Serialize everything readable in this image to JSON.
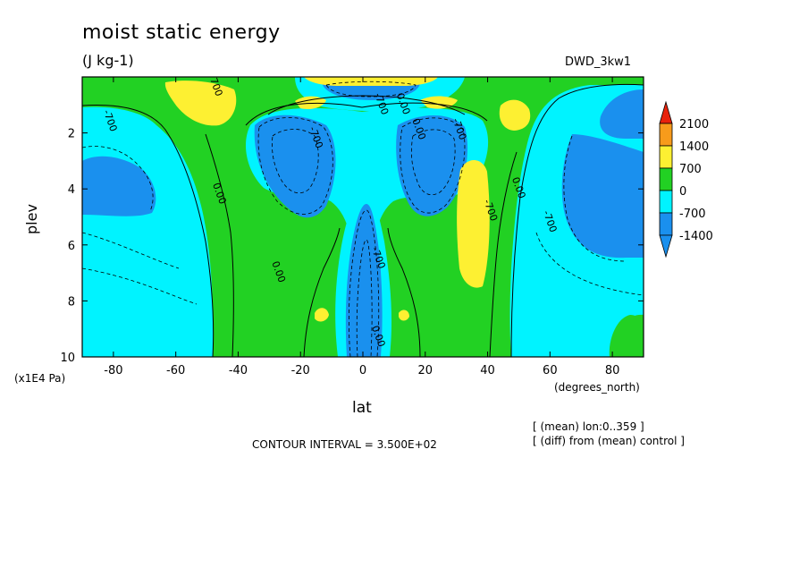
{
  "chart_data": {
    "type": "heatmap",
    "subtype": "filled-contour",
    "title": "moist static energy",
    "units": "(J kg-1)",
    "run_name": "DWD_3kw1",
    "xlabel": "lat",
    "x_units": "(degrees_north)",
    "ylabel": "plev",
    "y_units": "(x1E4 Pa)",
    "xlim": [
      -90,
      90
    ],
    "ylim": [
      0,
      10
    ],
    "y_inverted": true,
    "x_ticks": [
      -80,
      -60,
      -40,
      -20,
      0,
      20,
      40,
      60,
      80
    ],
    "x_tick_labels": [
      "-80",
      "-60",
      "-40",
      "-20",
      "0",
      "20",
      "40",
      "60",
      "80"
    ],
    "y_ticks": [
      2,
      4,
      6,
      8,
      10
    ],
    "y_tick_labels": [
      "2",
      "4",
      "6",
      "8",
      "10"
    ],
    "contour_interval_label": "CONTOUR INTERVAL = 3.500E+02",
    "contour_interval": 350,
    "notes": [
      "[ (mean) lon:0..359 ]",
      "[ (diff) from (mean) control ]"
    ],
    "colorbar": {
      "labels": [
        "2100",
        "1400",
        "700",
        "0",
        "-700",
        "-1400"
      ],
      "levels": [
        2100,
        1400,
        700,
        0,
        -700,
        -1400
      ],
      "colors": [
        "#e8220c",
        "#f79b1b",
        "#fdf032",
        "#22d123",
        "#00f3ff",
        "#1a90ee"
      ],
      "bottom_color": "#1a90ee"
    },
    "contour_labels": [
      {
        "text": "700",
        "x": -48,
        "y": 0.4
      },
      {
        "text": "-700",
        "x": -82,
        "y": 1.6
      },
      {
        "text": "0.00",
        "x": -47,
        "y": 4.2
      },
      {
        "text": "0.00",
        "x": -28,
        "y": 7.0
      },
      {
        "text": "-700",
        "x": 5,
        "y": 1.0
      },
      {
        "text": "0.00",
        "x": 12,
        "y": 1.0
      },
      {
        "text": "0.00",
        "x": 17,
        "y": 1.9
      },
      {
        "text": "-700",
        "x": 30,
        "y": 1.9
      },
      {
        "text": "-700",
        "x": -16,
        "y": 2.2
      },
      {
        "text": "-700",
        "x": 40,
        "y": 4.8
      },
      {
        "text": "0.00",
        "x": 49,
        "y": 4.0
      },
      {
        "text": "-700",
        "x": 59,
        "y": 5.2
      },
      {
        "text": "-700",
        "x": 4,
        "y": 6.5
      },
      {
        "text": "0.00",
        "x": 4,
        "y": 9.3
      }
    ]
  }
}
